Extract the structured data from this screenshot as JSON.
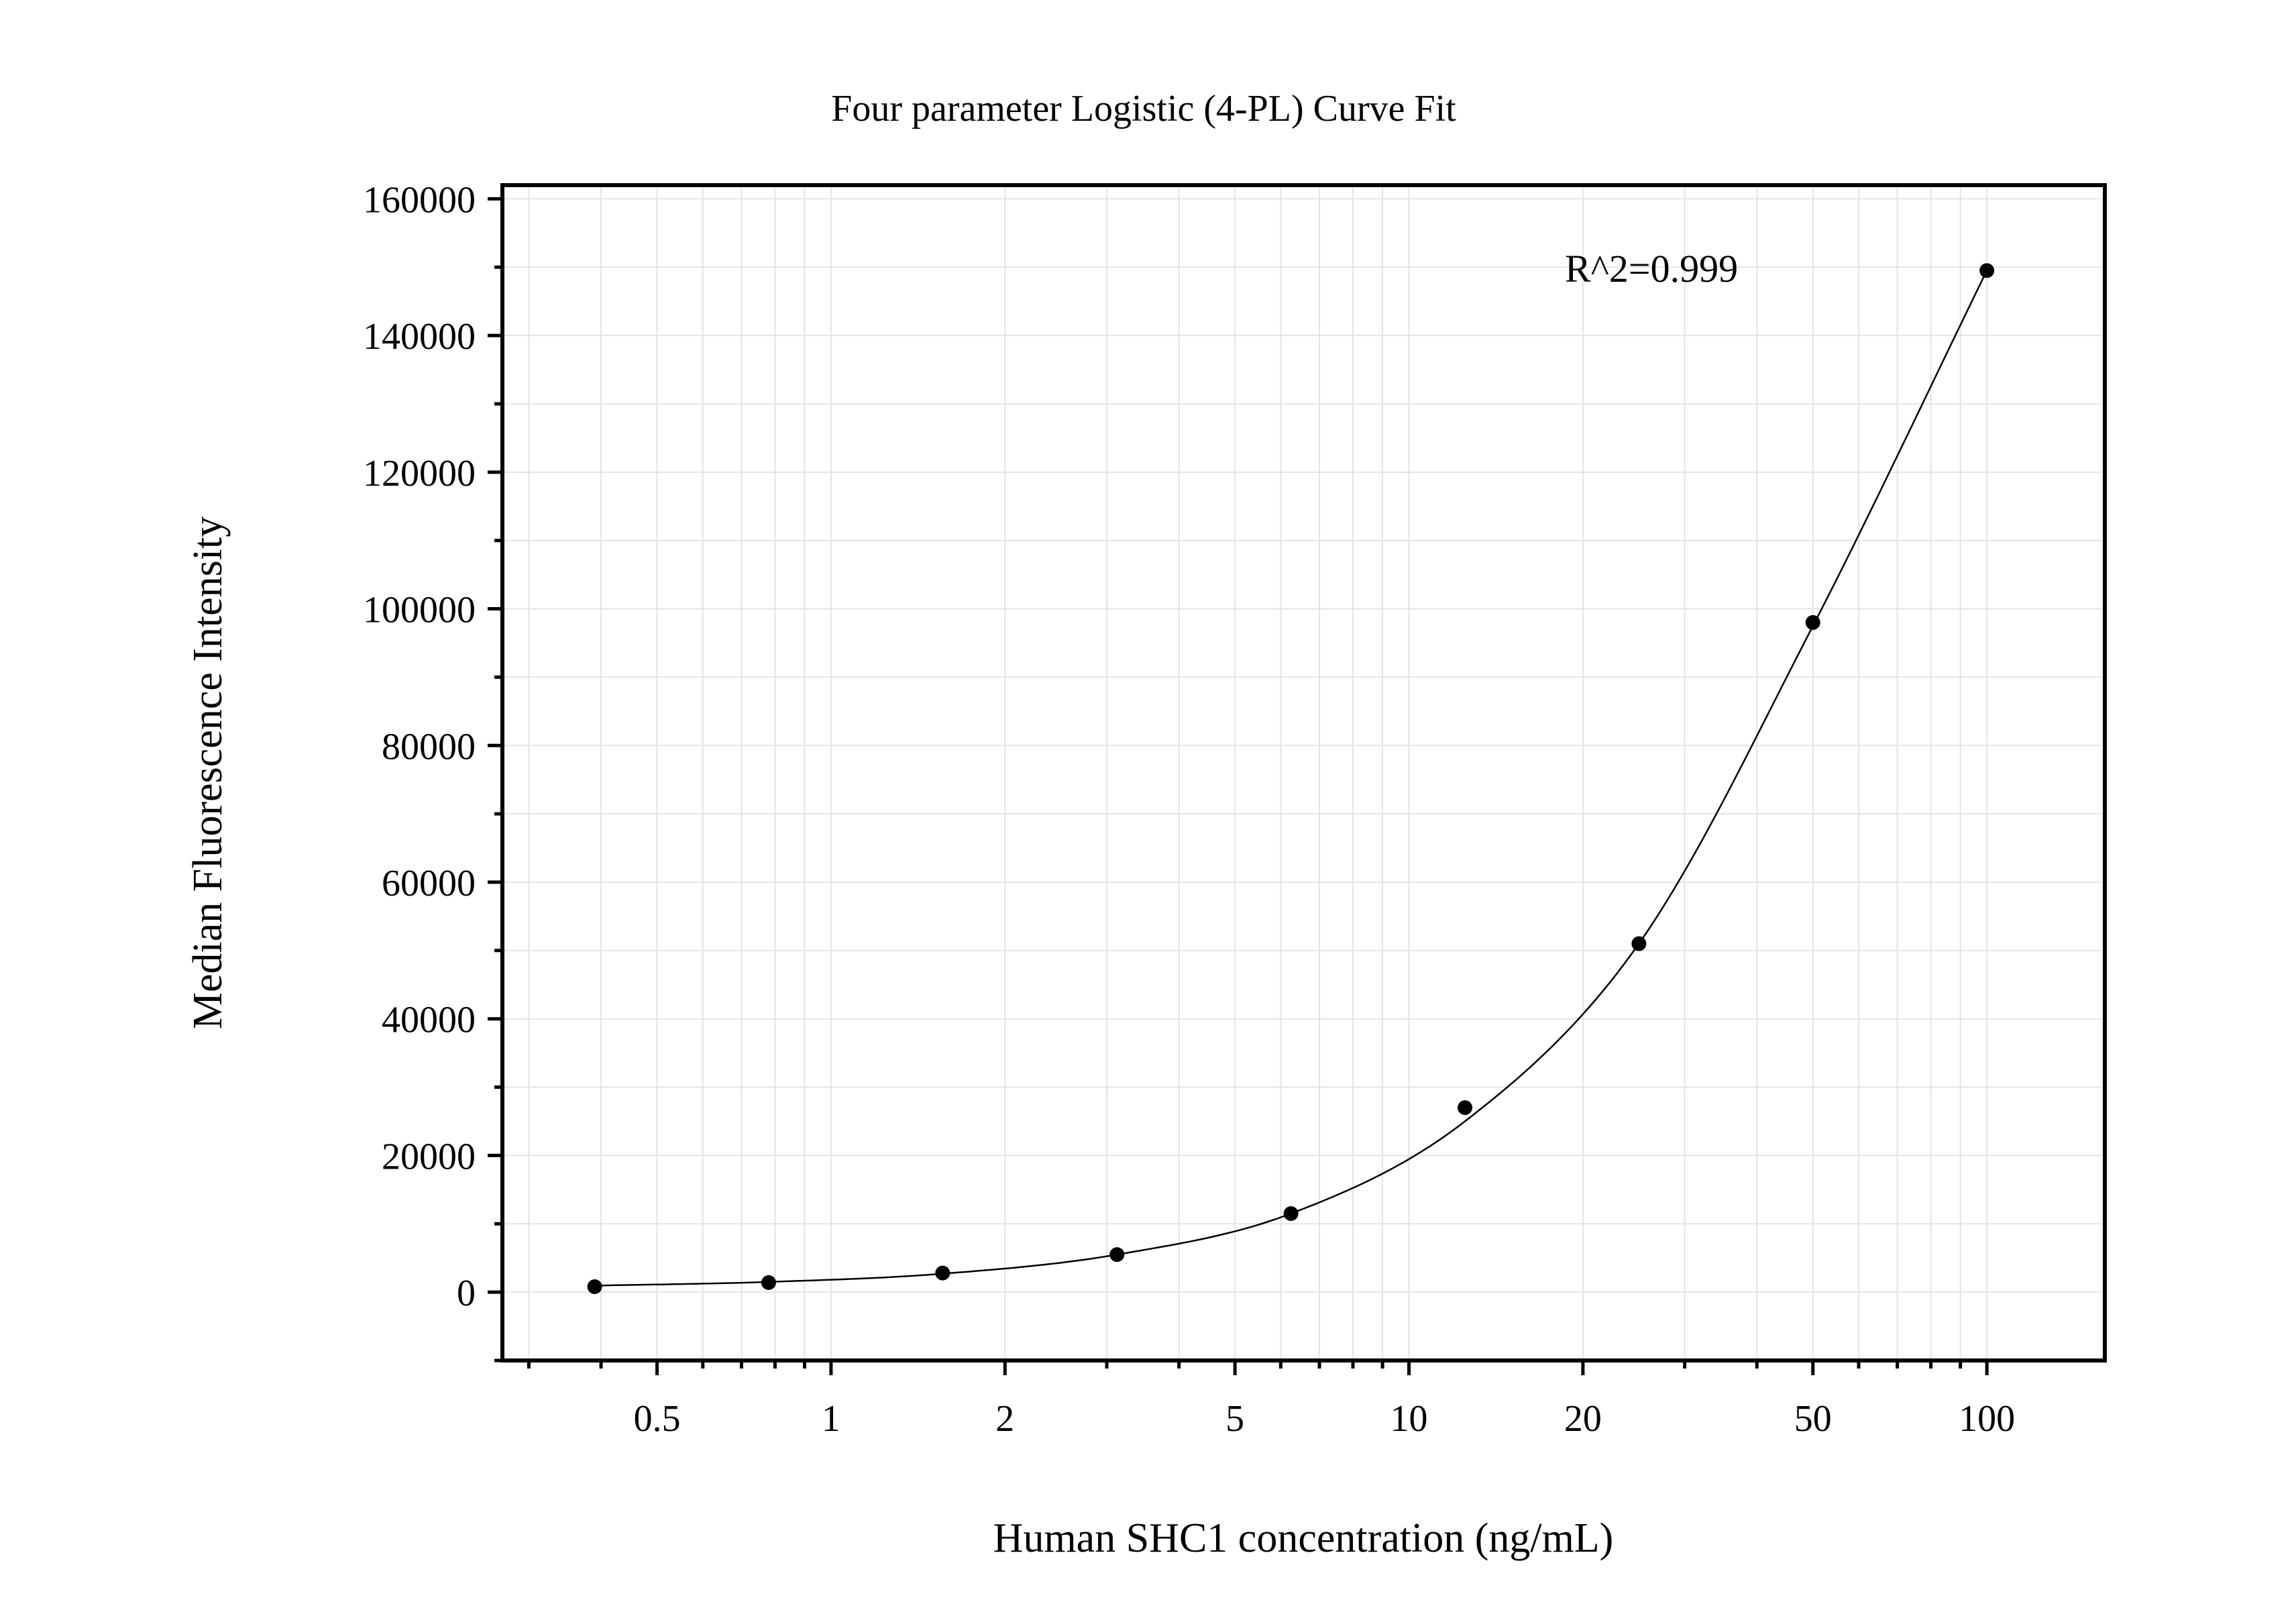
{
  "chart_data": {
    "type": "scatter",
    "title": "Four parameter Logistic (4-PL) Curve Fit",
    "xlabel": "Human SHC1 concentration (ng/mL)",
    "ylabel": "Median Fluorescence Intensity",
    "x_scale": "log",
    "xlim": [
      0.27,
      160
    ],
    "ylim": [
      -10000,
      162000
    ],
    "x_ticks": [
      0.5,
      1,
      2,
      5,
      10,
      20,
      50,
      100
    ],
    "x_tick_labels": [
      "0.5",
      "1",
      "2",
      "5",
      "10",
      "20",
      "50",
      "100"
    ],
    "y_ticks": [
      0,
      20000,
      40000,
      60000,
      80000,
      100000,
      120000,
      140000,
      160000
    ],
    "y_tick_labels": [
      "0",
      "20000",
      "40000",
      "60000",
      "80000",
      "100000",
      "120000",
      "140000",
      "160000"
    ],
    "grid": true,
    "annotation": "R^2=0.999",
    "points": {
      "x": [
        0.39,
        0.78,
        1.56,
        3.125,
        6.25,
        12.5,
        25,
        50,
        100
      ],
      "y": [
        800,
        1400,
        2800,
        5500,
        11500,
        27000,
        51000,
        98000,
        149500
      ]
    },
    "fit_curve": {
      "x": [
        0.39,
        0.78,
        1.56,
        3.125,
        6.25,
        12.5,
        25,
        50,
        100
      ],
      "y": [
        950,
        1500,
        2700,
        5500,
        11500,
        25000,
        51000,
        97500,
        149500
      ]
    },
    "colors": {
      "points": "#000000",
      "curve": "#000000",
      "grid": "#e3e3e3"
    }
  }
}
